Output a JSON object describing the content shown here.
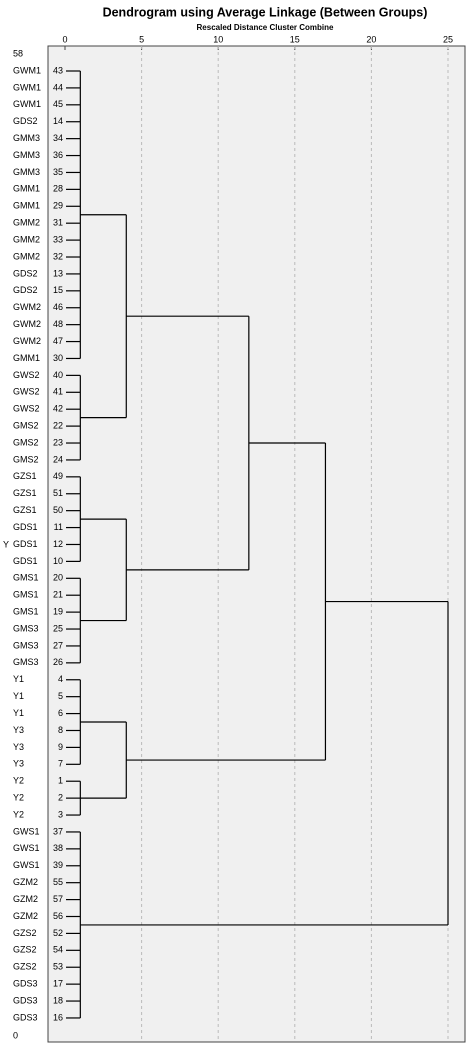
{
  "chart_data": {
    "type": "dendrogram",
    "title": "Dendrogram using Average Linkage (Between Groups)",
    "subtitle": "Rescaled Distance Cluster Combine",
    "axis_label": "Y",
    "row_top_label": 58,
    "row_bottom_label": 0,
    "xlim": [
      0,
      25
    ],
    "xticks": [
      0,
      5,
      10,
      15,
      20,
      25
    ],
    "grid": true,
    "tree": {
      "distance": 25,
      "children": [
        {
          "distance": 17,
          "children": [
            {
              "distance": 12,
              "children": [
                {
                  "distance": 4,
                  "children": [
                    {
                      "distance": 1,
                      "leaves": [
                        {
                          "label": "GWM1",
                          "case": 43
                        },
                        {
                          "label": "GWM1",
                          "case": 44
                        },
                        {
                          "label": "GWM1",
                          "case": 45
                        },
                        {
                          "label": "GDS2",
                          "case": 14
                        },
                        {
                          "label": "GMM3",
                          "case": 34
                        },
                        {
                          "label": "GMM3",
                          "case": 36
                        },
                        {
                          "label": "GMM3",
                          "case": 35
                        },
                        {
                          "label": "GMM1",
                          "case": 28
                        },
                        {
                          "label": "GMM1",
                          "case": 29
                        },
                        {
                          "label": "GMM2",
                          "case": 31
                        },
                        {
                          "label": "GMM2",
                          "case": 33
                        },
                        {
                          "label": "GMM2",
                          "case": 32
                        },
                        {
                          "label": "GDS2",
                          "case": 13
                        },
                        {
                          "label": "GDS2",
                          "case": 15
                        },
                        {
                          "label": "GWM2",
                          "case": 46
                        },
                        {
                          "label": "GWM2",
                          "case": 48
                        },
                        {
                          "label": "GWM2",
                          "case": 47
                        },
                        {
                          "label": "GMM1",
                          "case": 30
                        }
                      ]
                    },
                    {
                      "distance": 1,
                      "leaves": [
                        {
                          "label": "GWS2",
                          "case": 40
                        },
                        {
                          "label": "GWS2",
                          "case": 41
                        },
                        {
                          "label": "GWS2",
                          "case": 42
                        },
                        {
                          "label": "GMS2",
                          "case": 22
                        },
                        {
                          "label": "GMS2",
                          "case": 23
                        },
                        {
                          "label": "GMS2",
                          "case": 24
                        }
                      ]
                    }
                  ]
                },
                {
                  "distance": 4,
                  "children": [
                    {
                      "distance": 1,
                      "leaves": [
                        {
                          "label": "GZS1",
                          "case": 49
                        },
                        {
                          "label": "GZS1",
                          "case": 51
                        },
                        {
                          "label": "GZS1",
                          "case": 50
                        },
                        {
                          "label": "GDS1",
                          "case": 11
                        },
                        {
                          "label": "GDS1",
                          "case": 12
                        },
                        {
                          "label": "GDS1",
                          "case": 10
                        }
                      ]
                    },
                    {
                      "distance": 1,
                      "leaves": [
                        {
                          "label": "GMS1",
                          "case": 20
                        },
                        {
                          "label": "GMS1",
                          "case": 21
                        },
                        {
                          "label": "GMS1",
                          "case": 19
                        },
                        {
                          "label": "GMS3",
                          "case": 25
                        },
                        {
                          "label": "GMS3",
                          "case": 27
                        },
                        {
                          "label": "GMS3",
                          "case": 26
                        }
                      ]
                    }
                  ]
                }
              ]
            },
            {
              "distance": 4,
              "children": [
                {
                  "distance": 1,
                  "leaves": [
                    {
                      "label": "Y1",
                      "case": 4
                    },
                    {
                      "label": "Y1",
                      "case": 5
                    },
                    {
                      "label": "Y1",
                      "case": 6
                    },
                    {
                      "label": "Y3",
                      "case": 8
                    },
                    {
                      "label": "Y3",
                      "case": 9
                    },
                    {
                      "label": "Y3",
                      "case": 7
                    }
                  ]
                },
                {
                  "distance": 1,
                  "leaves": [
                    {
                      "label": "Y2",
                      "case": 1
                    },
                    {
                      "label": "Y2",
                      "case": 2
                    },
                    {
                      "label": "Y2",
                      "case": 3
                    }
                  ]
                }
              ]
            }
          ]
        },
        {
          "distance": 1,
          "leaves": [
            {
              "label": "GWS1",
              "case": 37
            },
            {
              "label": "GWS1",
              "case": 38
            },
            {
              "label": "GWS1",
              "case": 39
            },
            {
              "label": "GZM2",
              "case": 55
            },
            {
              "label": "GZM2",
              "case": 57
            },
            {
              "label": "GZM2",
              "case": 56
            },
            {
              "label": "GZS2",
              "case": 52
            },
            {
              "label": "GZS2",
              "case": 54
            },
            {
              "label": "GZS2",
              "case": 53
            },
            {
              "label": "GDS3",
              "case": 17
            },
            {
              "label": "GDS3",
              "case": 18
            },
            {
              "label": "GDS3",
              "case": 16
            }
          ]
        }
      ]
    }
  }
}
